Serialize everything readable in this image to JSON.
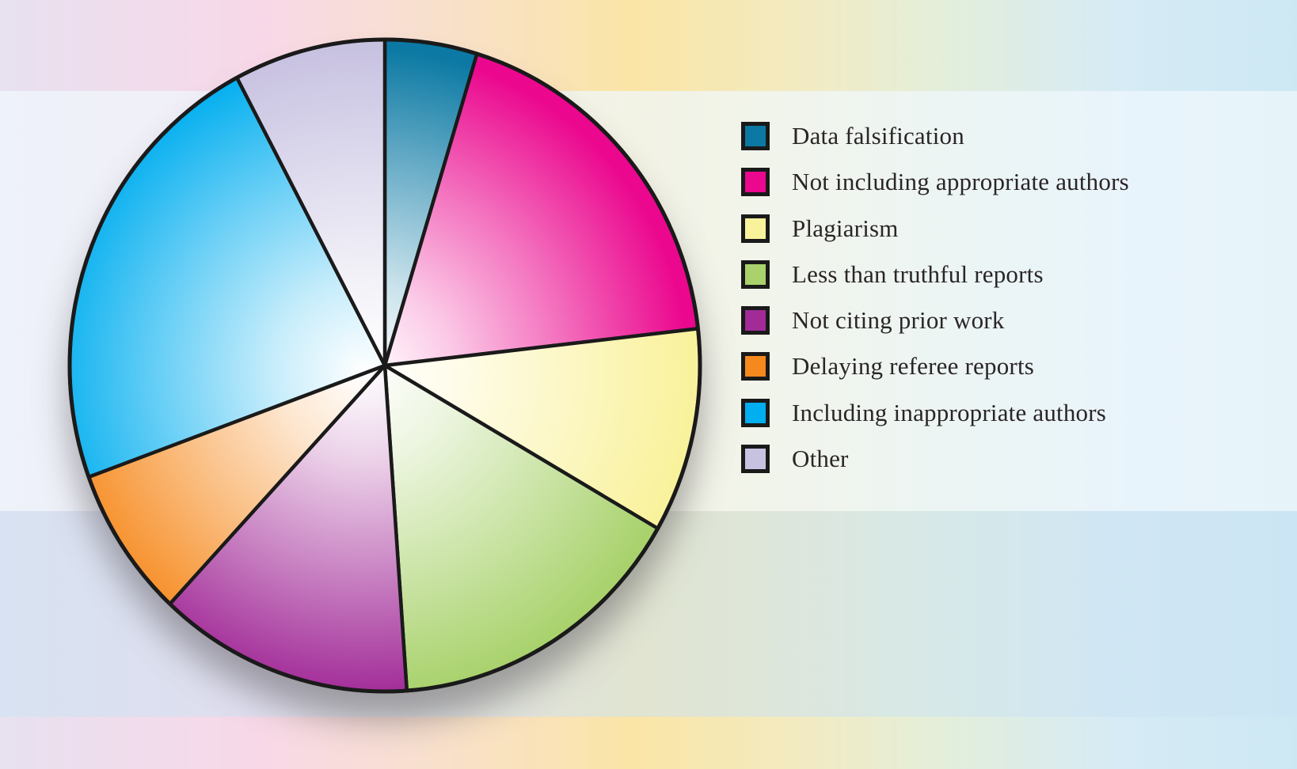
{
  "chart_data": {
    "type": "pie",
    "title": "",
    "legend_position": "right",
    "direction": "clockwise",
    "start_angle_deg": 0,
    "outline_color": "#1A1A1A",
    "shading": "radial gradient, white at pie center to full color at rim",
    "drop_shadow": true,
    "slices": [
      {
        "label": "Data falsification",
        "percent": 4.7,
        "degrees": 17,
        "color": "#0B79A3"
      },
      {
        "label": "Not including appropriate authors",
        "percent": 18.5,
        "degrees": 66.5,
        "color": "#EB078E"
      },
      {
        "label": "Plagiarism",
        "percent": 10.1,
        "degrees": 36.5,
        "color": "#F9F29D"
      },
      {
        "label": "Less than truthful reports",
        "percent": 15.6,
        "degrees": 56,
        "color": "#A9D26D"
      },
      {
        "label": "Not citing prior work",
        "percent": 13.1,
        "degrees": 47,
        "color": "#A22B98"
      },
      {
        "label": "Delaying referee reports",
        "percent": 7.5,
        "degrees": 27,
        "color": "#F6891D"
      },
      {
        "label": "Including inappropriate authors",
        "percent": 22.8,
        "degrees": 82,
        "color": "#01AEEF"
      },
      {
        "label": "Other",
        "percent": 7.8,
        "degrees": 28,
        "color": "#C8C2E1"
      }
    ]
  }
}
